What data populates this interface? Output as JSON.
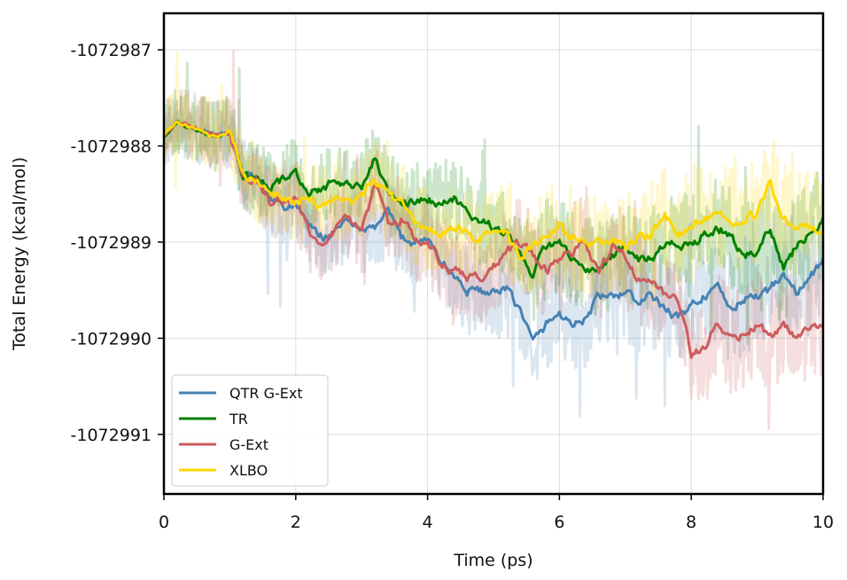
{
  "chart_data": {
    "type": "line",
    "title": "",
    "xlabel": "Time (ps)",
    "ylabel": "Total Energy (kcal/mol)",
    "xlim": [
      0,
      10
    ],
    "ylim": [
      -1072991.62,
      -1072986.62
    ],
    "xticks": [
      0,
      2,
      4,
      6,
      8,
      10
    ],
    "xtick_labels": [
      "0",
      "2",
      "4",
      "6",
      "8",
      "10"
    ],
    "yticks": [
      -1072987,
      -1072988,
      -1072989,
      -1072990,
      -1072991
    ],
    "ytick_labels": [
      "-1072987",
      "-1072988",
      "-1072989",
      "-1072990",
      "-1072991"
    ],
    "grid": true,
    "legend_position": "lower-left",
    "series": [
      {
        "name": "QTR G-Ext",
        "color": "#4682b4",
        "x": [
          0,
          0.2,
          0.4,
          0.6,
          0.8,
          1.0,
          1.2,
          1.4,
          1.6,
          1.8,
          2.0,
          2.2,
          2.4,
          2.6,
          2.8,
          3.0,
          3.2,
          3.4,
          3.6,
          3.8,
          4.0,
          4.2,
          4.4,
          4.6,
          4.8,
          5.0,
          5.2,
          5.4,
          5.6,
          5.8,
          6.0,
          6.2,
          6.4,
          6.6,
          6.8,
          7.0,
          7.2,
          7.4,
          7.6,
          7.8,
          8.0,
          8.2,
          8.4,
          8.6,
          8.8,
          9.0,
          9.2,
          9.4,
          9.6,
          9.8,
          10.0
        ],
        "values": [
          -1072987.9,
          -1072987.75,
          -1072987.8,
          -1072987.85,
          -1072987.9,
          -1072987.85,
          -1072988.3,
          -1072988.35,
          -1072988.55,
          -1072988.65,
          -1072988.6,
          -1072988.85,
          -1072988.95,
          -1072988.9,
          -1072988.75,
          -1072988.9,
          -1072988.85,
          -1072988.7,
          -1072988.95,
          -1072989.0,
          -1072988.95,
          -1072989.2,
          -1072989.35,
          -1072989.5,
          -1072989.5,
          -1072989.55,
          -1072989.5,
          -1072989.7,
          -1072990.05,
          -1072989.85,
          -1072989.75,
          -1072989.85,
          -1072989.8,
          -1072989.55,
          -1072989.6,
          -1072989.5,
          -1072989.65,
          -1072989.55,
          -1072989.7,
          -1072989.8,
          -1072989.65,
          -1072989.55,
          -1072989.5,
          -1072989.7,
          -1072989.6,
          -1072989.55,
          -1072989.5,
          -1072989.3,
          -1072989.55,
          -1072989.35,
          -1072989.2
        ]
      },
      {
        "name": "TR",
        "color": "#008000",
        "x": [
          0,
          0.2,
          0.4,
          0.6,
          0.8,
          1.0,
          1.2,
          1.4,
          1.6,
          1.8,
          2.0,
          2.2,
          2.4,
          2.6,
          2.8,
          3.0,
          3.2,
          3.4,
          3.6,
          3.8,
          4.0,
          4.2,
          4.4,
          4.6,
          4.8,
          5.0,
          5.2,
          5.4,
          5.6,
          5.8,
          6.0,
          6.2,
          6.4,
          6.6,
          6.8,
          7.0,
          7.2,
          7.4,
          7.6,
          7.8,
          8.0,
          8.2,
          8.4,
          8.6,
          8.8,
          9.0,
          9.2,
          9.4,
          9.6,
          9.8,
          10.0
        ],
        "values": [
          -1072987.9,
          -1072987.75,
          -1072987.8,
          -1072987.85,
          -1072987.9,
          -1072987.85,
          -1072988.3,
          -1072988.3,
          -1072988.45,
          -1072988.35,
          -1072988.3,
          -1072988.5,
          -1072988.45,
          -1072988.35,
          -1072988.4,
          -1072988.45,
          -1072988.1,
          -1072988.5,
          -1072988.55,
          -1072988.6,
          -1072988.55,
          -1072988.6,
          -1072988.55,
          -1072988.7,
          -1072988.8,
          -1072988.85,
          -1072988.9,
          -1072989.15,
          -1072989.35,
          -1072989.05,
          -1072989.0,
          -1072989.15,
          -1072989.25,
          -1072989.3,
          -1072989.15,
          -1072989.05,
          -1072989.2,
          -1072989.15,
          -1072989.05,
          -1072989.0,
          -1072989.05,
          -1072988.9,
          -1072988.85,
          -1072988.9,
          -1072989.15,
          -1072989.1,
          -1072988.85,
          -1072989.25,
          -1072989.05,
          -1072988.9,
          -1072988.75
        ]
      },
      {
        "name": "G-Ext",
        "color": "#cd5c5c",
        "x": [
          0,
          0.2,
          0.4,
          0.6,
          0.8,
          1.0,
          1.2,
          1.4,
          1.6,
          1.8,
          2.0,
          2.2,
          2.4,
          2.6,
          2.8,
          3.0,
          3.2,
          3.4,
          3.6,
          3.8,
          4.0,
          4.2,
          4.4,
          4.6,
          4.8,
          5.0,
          5.2,
          5.4,
          5.6,
          5.8,
          6.0,
          6.2,
          6.4,
          6.6,
          6.8,
          7.0,
          7.2,
          7.4,
          7.6,
          7.8,
          8.0,
          8.2,
          8.4,
          8.6,
          8.8,
          9.0,
          9.2,
          9.4,
          9.6,
          9.8,
          10.0
        ],
        "values": [
          -1072987.9,
          -1072987.75,
          -1072987.8,
          -1072987.85,
          -1072987.9,
          -1072987.85,
          -1072988.3,
          -1072988.35,
          -1072988.6,
          -1072988.55,
          -1072988.55,
          -1072988.9,
          -1072989.0,
          -1072988.85,
          -1072988.75,
          -1072988.9,
          -1072988.4,
          -1072988.8,
          -1072988.75,
          -1072988.95,
          -1072989.0,
          -1072989.2,
          -1072989.3,
          -1072989.35,
          -1072989.4,
          -1072989.25,
          -1072989.1,
          -1072989.0,
          -1072989.15,
          -1072989.3,
          -1072989.2,
          -1072989.1,
          -1072989.0,
          -1072989.35,
          -1072989.05,
          -1072989.15,
          -1072989.4,
          -1072989.45,
          -1072989.55,
          -1072989.6,
          -1072990.15,
          -1072990.1,
          -1072989.85,
          -1072990.0,
          -1072989.95,
          -1072989.85,
          -1072990.0,
          -1072989.9,
          -1072989.95,
          -1072989.9,
          -1072989.85
        ]
      },
      {
        "name": "XLBO",
        "color": "#ffd700",
        "x": [
          0,
          0.2,
          0.4,
          0.6,
          0.8,
          1.0,
          1.2,
          1.4,
          1.6,
          1.8,
          2.0,
          2.2,
          2.4,
          2.6,
          2.8,
          3.0,
          3.2,
          3.4,
          3.6,
          3.8,
          4.0,
          4.2,
          4.4,
          4.6,
          4.8,
          5.0,
          5.2,
          5.4,
          5.6,
          5.8,
          6.0,
          6.2,
          6.4,
          6.6,
          6.8,
          7.0,
          7.2,
          7.4,
          7.6,
          7.8,
          8.0,
          8.2,
          8.4,
          8.6,
          8.8,
          9.0,
          9.2,
          9.4,
          9.6,
          9.8,
          10.0
        ],
        "values": [
          -1072987.9,
          -1072987.75,
          -1072987.8,
          -1072987.85,
          -1072987.9,
          -1072987.85,
          -1072988.3,
          -1072988.4,
          -1072988.5,
          -1072988.55,
          -1072988.6,
          -1072988.55,
          -1072988.65,
          -1072988.55,
          -1072988.6,
          -1072988.55,
          -1072988.35,
          -1072988.5,
          -1072988.6,
          -1072988.8,
          -1072988.85,
          -1072988.95,
          -1072988.85,
          -1072988.9,
          -1072988.95,
          -1072988.85,
          -1072988.9,
          -1072989.15,
          -1072989.05,
          -1072988.95,
          -1072988.8,
          -1072988.95,
          -1072989.05,
          -1072988.95,
          -1072989.0,
          -1072989.05,
          -1072988.95,
          -1072988.9,
          -1072988.75,
          -1072988.9,
          -1072988.8,
          -1072988.75,
          -1072988.7,
          -1072988.8,
          -1072988.75,
          -1072988.7,
          -1072988.4,
          -1072988.75,
          -1072988.8,
          -1072988.85,
          -1072988.9
        ]
      }
    ]
  }
}
